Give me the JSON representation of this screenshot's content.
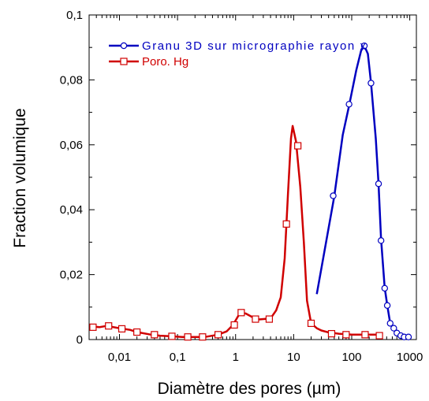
{
  "chart_data": {
    "type": "line",
    "xlabel": "Diamètre des pores (µm)",
    "ylabel": "Fraction volumique",
    "x_scale": "log",
    "xlim": [
      0.003,
      1300
    ],
    "ylim": [
      0,
      0.1
    ],
    "x_ticks": [
      0.01,
      0.1,
      1,
      10,
      100,
      1000
    ],
    "x_tick_labels": [
      "0,01",
      "0,1",
      "1",
      "10",
      "100",
      "1000"
    ],
    "y_ticks": [
      0,
      0.02,
      0.04,
      0.06,
      0.08,
      0.1
    ],
    "y_tick_labels": [
      "0",
      "0,02",
      "0,04",
      "0,06",
      "0,08",
      "0,1"
    ],
    "grid": false,
    "legend_position": "top-left",
    "series": [
      {
        "name": "Granu 3D sur micrographie rayon x",
        "color": "#0000c0",
        "marker": "circle",
        "line": [
          [
            25,
            0.014
          ],
          [
            50,
            0.044
          ],
          [
            70,
            0.063
          ],
          [
            90,
            0.072
          ],
          [
            120,
            0.083
          ],
          [
            145,
            0.089
          ],
          [
            165,
            0.0905
          ],
          [
            190,
            0.088
          ],
          [
            215,
            0.079
          ],
          [
            260,
            0.062
          ],
          [
            290,
            0.048
          ],
          [
            320,
            0.031
          ],
          [
            370,
            0.016
          ],
          [
            410,
            0.0105
          ],
          [
            460,
            0.005
          ],
          [
            530,
            0.0035
          ],
          [
            600,
            0.002
          ],
          [
            700,
            0.0015
          ],
          [
            800,
            0.001
          ],
          [
            950,
            0.001
          ]
        ],
        "markers": [
          [
            48,
            0.0443
          ],
          [
            90,
            0.0725
          ],
          [
            165,
            0.0905
          ],
          [
            215,
            0.079
          ],
          [
            290,
            0.048
          ],
          [
            320,
            0.0305
          ],
          [
            370,
            0.0158
          ],
          [
            410,
            0.0105
          ],
          [
            460,
            0.005
          ],
          [
            530,
            0.0035
          ],
          [
            600,
            0.002
          ],
          [
            700,
            0.0012
          ],
          [
            800,
            0.0008
          ],
          [
            950,
            0.0008
          ]
        ]
      },
      {
        "name": "Poro. Hg",
        "color": "#d00000",
        "marker": "square",
        "line": [
          [
            0.0035,
            0.004
          ],
          [
            0.0045,
            0.0038
          ],
          [
            0.006,
            0.0042
          ],
          [
            0.01,
            0.0035
          ],
          [
            0.015,
            0.003
          ],
          [
            0.02,
            0.0023
          ],
          [
            0.035,
            0.0015
          ],
          [
            0.05,
            0.0012
          ],
          [
            0.08,
            0.001
          ],
          [
            0.12,
            0.0008
          ],
          [
            0.2,
            0.0008
          ],
          [
            0.3,
            0.0008
          ],
          [
            0.5,
            0.0015
          ],
          [
            0.7,
            0.0025
          ],
          [
            0.9,
            0.0045
          ],
          [
            1.2,
            0.0083
          ],
          [
            1.5,
            0.008
          ],
          [
            2,
            0.0068
          ],
          [
            2.5,
            0.0062
          ],
          [
            3,
            0.0063
          ],
          [
            4,
            0.0065
          ],
          [
            5,
            0.009
          ],
          [
            6,
            0.013
          ],
          [
            7,
            0.025
          ],
          [
            8,
            0.045
          ],
          [
            9,
            0.062
          ],
          [
            9.6,
            0.0658
          ],
          [
            11,
            0.061
          ],
          [
            13,
            0.047
          ],
          [
            15,
            0.03
          ],
          [
            17,
            0.012
          ],
          [
            20,
            0.005
          ],
          [
            25,
            0.0035
          ],
          [
            30,
            0.0028
          ],
          [
            40,
            0.0022
          ],
          [
            60,
            0.0018
          ],
          [
            100,
            0.0015
          ],
          [
            200,
            0.0015
          ],
          [
            300,
            0.0015
          ]
        ],
        "markers": [
          [
            0.0035,
            0.0038
          ],
          [
            0.0065,
            0.0042
          ],
          [
            0.011,
            0.0033
          ],
          [
            0.02,
            0.0023
          ],
          [
            0.04,
            0.0015
          ],
          [
            0.08,
            0.001
          ],
          [
            0.15,
            0.0008
          ],
          [
            0.27,
            0.0008
          ],
          [
            0.5,
            0.0015
          ],
          [
            0.95,
            0.0045
          ],
          [
            1.25,
            0.0083
          ],
          [
            2.2,
            0.0063
          ],
          [
            3.8,
            0.0063
          ],
          [
            7.5,
            0.0356
          ],
          [
            11.8,
            0.0597
          ],
          [
            20,
            0.005
          ],
          [
            45,
            0.0018
          ],
          [
            80,
            0.0015
          ],
          [
            170,
            0.0015
          ],
          [
            300,
            0.0012
          ]
        ]
      }
    ]
  }
}
